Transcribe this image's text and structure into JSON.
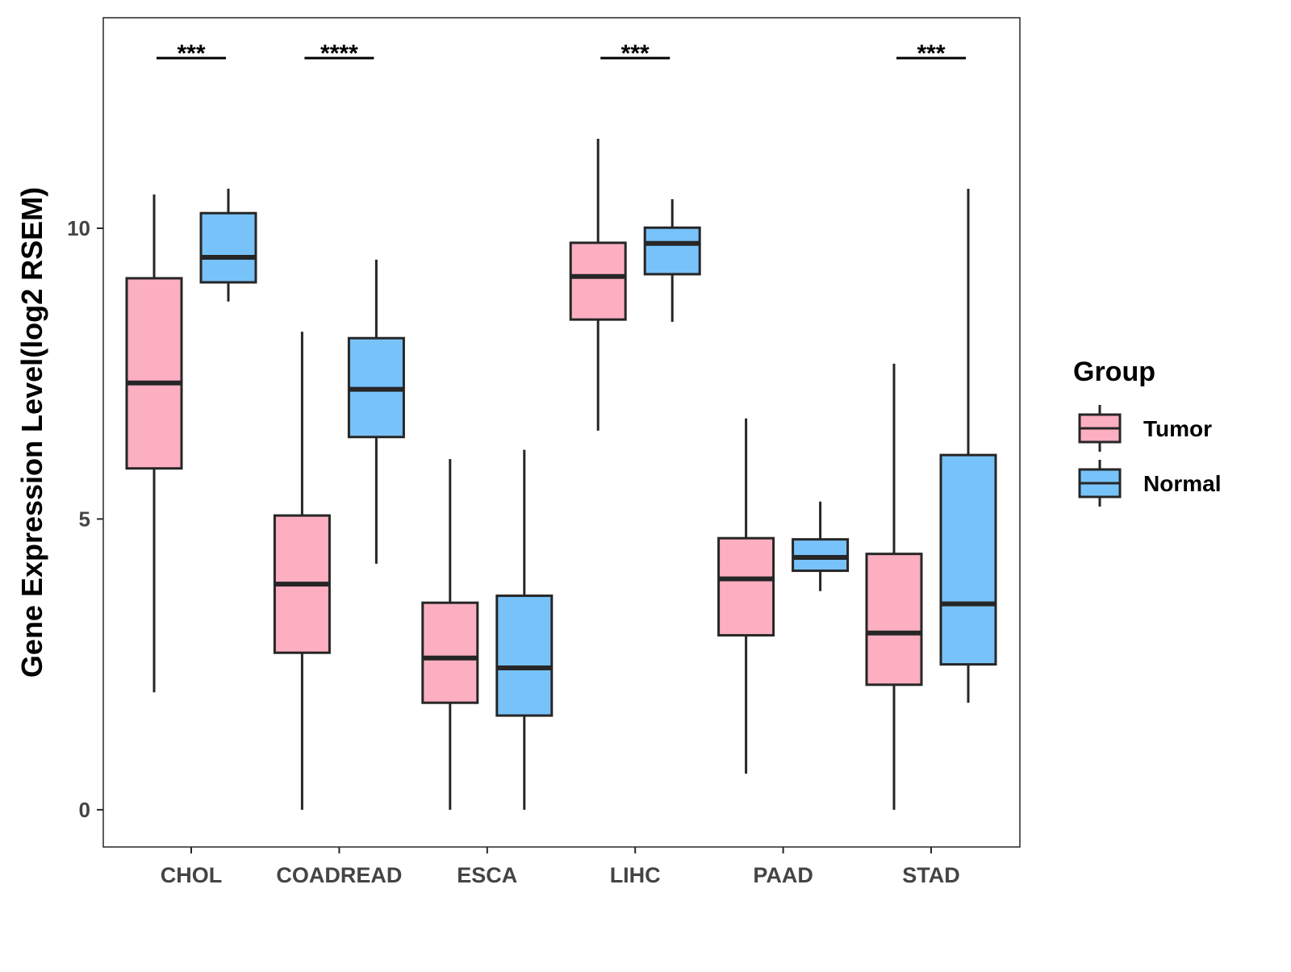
{
  "chart_data": {
    "type": "boxplot",
    "title": "",
    "xlabel": "",
    "ylabel": "Gene Expression Level(log2 RSEM)",
    "ylim": [
      -0.64,
      13.62
    ],
    "yticks": [
      0,
      5,
      10
    ],
    "ytick_labels": [
      "0",
      "5",
      "10"
    ],
    "grid": false,
    "categories": [
      "CHOL",
      "COADREAD",
      "ESCA",
      "LIHC",
      "PAAD",
      "STAD"
    ],
    "legend": {
      "title": "Group",
      "placement": "right",
      "entries": [
        "Tumor",
        "Normal"
      ]
    },
    "colors": {
      "Tumor": "#FBAFC0",
      "Normal": "#78C2FA",
      "stroke": "#262626"
    },
    "series": [
      {
        "name": "Tumor",
        "boxes": [
          {
            "lower_whisker": 2.02,
            "q1": 5.87,
            "median": 7.34,
            "q3": 9.14,
            "upper_whisker": 10.58
          },
          {
            "lower_whisker": 0.0,
            "q1": 2.7,
            "median": 3.88,
            "q3": 5.06,
            "upper_whisker": 8.22
          },
          {
            "lower_whisker": 0.0,
            "q1": 1.84,
            "median": 2.61,
            "q3": 3.56,
            "upper_whisker": 6.03
          },
          {
            "lower_whisker": 6.52,
            "q1": 8.43,
            "median": 9.17,
            "q3": 9.75,
            "upper_whisker": 11.54
          },
          {
            "lower_whisker": 0.62,
            "q1": 3.0,
            "median": 3.97,
            "q3": 4.67,
            "upper_whisker": 6.73
          },
          {
            "lower_whisker": 0.0,
            "q1": 2.15,
            "median": 3.04,
            "q3": 4.4,
            "upper_whisker": 7.67
          }
        ]
      },
      {
        "name": "Normal",
        "boxes": [
          {
            "lower_whisker": 8.74,
            "q1": 9.07,
            "median": 9.5,
            "q3": 10.26,
            "upper_whisker": 10.68
          },
          {
            "lower_whisker": 4.23,
            "q1": 6.41,
            "median": 7.23,
            "q3": 8.11,
            "upper_whisker": 9.46
          },
          {
            "lower_whisker": 0.0,
            "q1": 1.62,
            "median": 2.44,
            "q3": 3.68,
            "upper_whisker": 6.19
          },
          {
            "lower_whisker": 8.39,
            "q1": 9.21,
            "median": 9.74,
            "q3": 10.01,
            "upper_whisker": 10.5
          },
          {
            "lower_whisker": 3.76,
            "q1": 4.11,
            "median": 4.34,
            "q3": 4.65,
            "upper_whisker": 5.3
          },
          {
            "lower_whisker": 1.84,
            "q1": 2.5,
            "median": 3.54,
            "q3": 6.1,
            "upper_whisker": 10.68
          }
        ]
      }
    ],
    "annotations": [
      {
        "category": "CHOL",
        "label": "***"
      },
      {
        "category": "COADREAD",
        "label": "****"
      },
      {
        "category": "LIHC",
        "label": "***"
      },
      {
        "category": "STAD",
        "label": "***"
      }
    ]
  }
}
